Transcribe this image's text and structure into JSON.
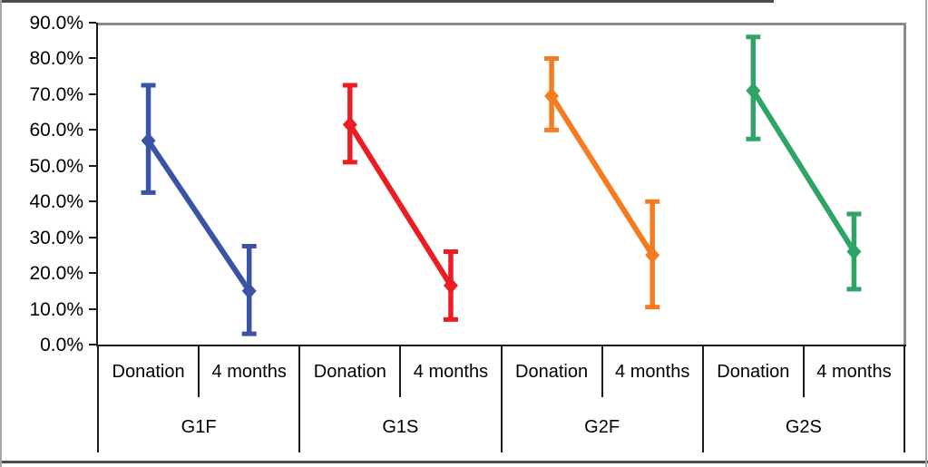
{
  "figure": {
    "title": "",
    "background": "#ffffff",
    "frame_color": "#4d4d4d",
    "axis_color": "#1a1a1a",
    "plot_border_color": "#8c8c8c"
  },
  "chart_data": {
    "type": "line",
    "title": "",
    "xlabel": "",
    "ylabel": "",
    "ylim": [
      0,
      90
    ],
    "grid": false,
    "legend": "none",
    "ytick_labels": [
      "90.0%",
      "80.0%",
      "70.0%",
      "60.0%",
      "50.0%",
      "40.0%",
      "30.0%",
      "20.0%",
      "10.0%",
      "0.0%"
    ],
    "categories_level1": [
      "Donation",
      "4 months"
    ],
    "groups": [
      "G1F",
      "G1S",
      "G2F",
      "G2S"
    ],
    "series": [
      {
        "name": "G1F",
        "color": "#3A53A4",
        "points": [
          {
            "category": "Donation",
            "value": 57.0,
            "err_low": 42.5,
            "err_high": 72.5
          },
          {
            "category": "4 months",
            "value": 15.0,
            "err_low": 3.0,
            "err_high": 27.5
          }
        ]
      },
      {
        "name": "G1S",
        "color": "#EC1C24",
        "points": [
          {
            "category": "Donation",
            "value": 61.5,
            "err_low": 51.0,
            "err_high": 72.5
          },
          {
            "category": "4 months",
            "value": 16.5,
            "err_low": 7.0,
            "err_high": 26.0
          }
        ]
      },
      {
        "name": "G2F",
        "color": "#F47B20",
        "points": [
          {
            "category": "Donation",
            "value": 69.5,
            "err_low": 60.0,
            "err_high": 80.0
          },
          {
            "category": "4 months",
            "value": 25.0,
            "err_low": 10.5,
            "err_high": 40.0
          }
        ]
      },
      {
        "name": "G2S",
        "color": "#2EA566",
        "points": [
          {
            "category": "Donation",
            "value": 71.0,
            "err_low": 57.5,
            "err_high": 86.0
          },
          {
            "category": "4 months",
            "value": 26.0,
            "err_low": 15.5,
            "err_high": 36.5
          }
        ]
      }
    ]
  }
}
